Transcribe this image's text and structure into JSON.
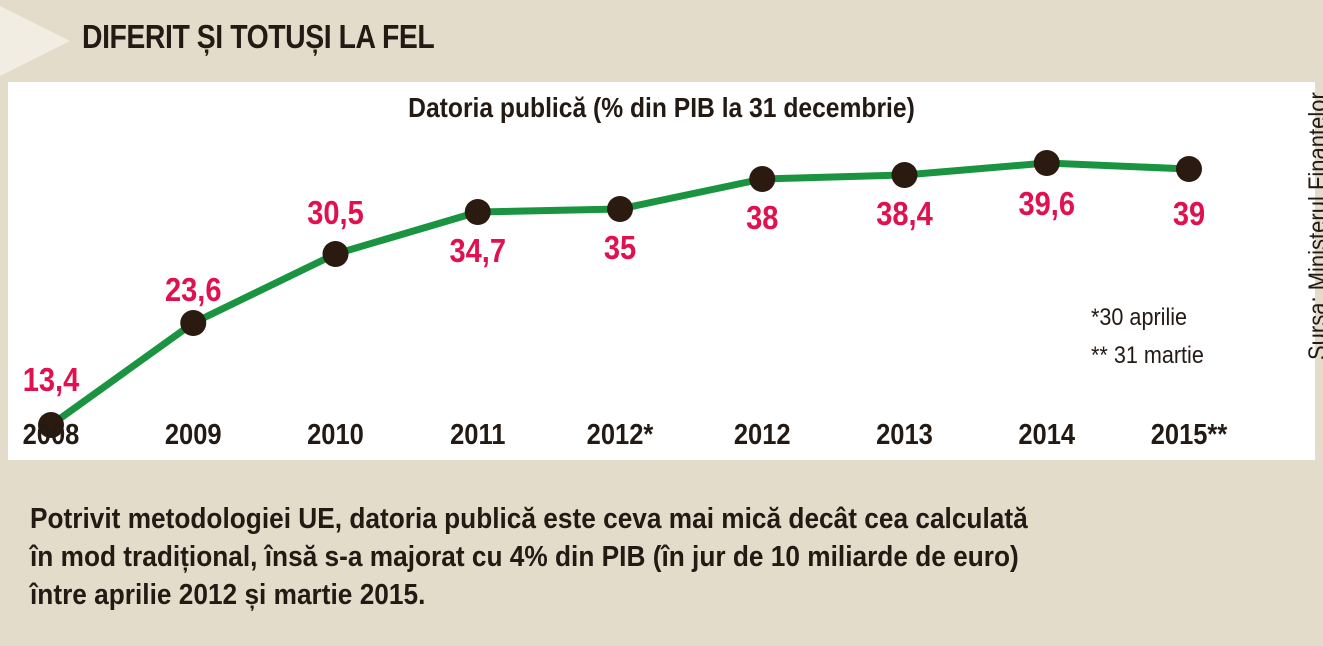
{
  "header": {
    "title": "DIFERIT ȘI TOTUȘI LA FEL"
  },
  "chart": {
    "source": "Sursa: Ministerul Finanțelor",
    "notes": [
      "*30 aprilie",
      "** 31 martie"
    ]
  },
  "chart_data": {
    "type": "line",
    "title": "Datoria publică (% din PIB la 31 decembrie)",
    "categories": [
      "2008",
      "2009",
      "2010",
      "2011",
      "2012*",
      "2012",
      "2013",
      "2014",
      "2015**"
    ],
    "values": [
      13.4,
      23.6,
      30.5,
      34.7,
      35,
      38,
      38.4,
      39.6,
      39
    ],
    "value_labels": [
      "13,4",
      "23,6",
      "30,5",
      "34,7",
      "35",
      "38",
      "38,4",
      "39,6",
      "39"
    ],
    "xlabel": "",
    "ylabel": "",
    "grid": false,
    "colors": {
      "line": "#1a9441",
      "marker": "#2a1a10",
      "value_label": "#e0114e",
      "tick_label": "#231a14"
    }
  },
  "footer": {
    "lines": [
      "Potrivit metodologiei UE, datoria publică este ceva mai mică decât cea calculată",
      "în mod tradițional, însă s-a majorat cu 4% din PIB (în jur de 10 miliarde de euro)",
      "între aprilie 2012 și martie 2015."
    ]
  }
}
